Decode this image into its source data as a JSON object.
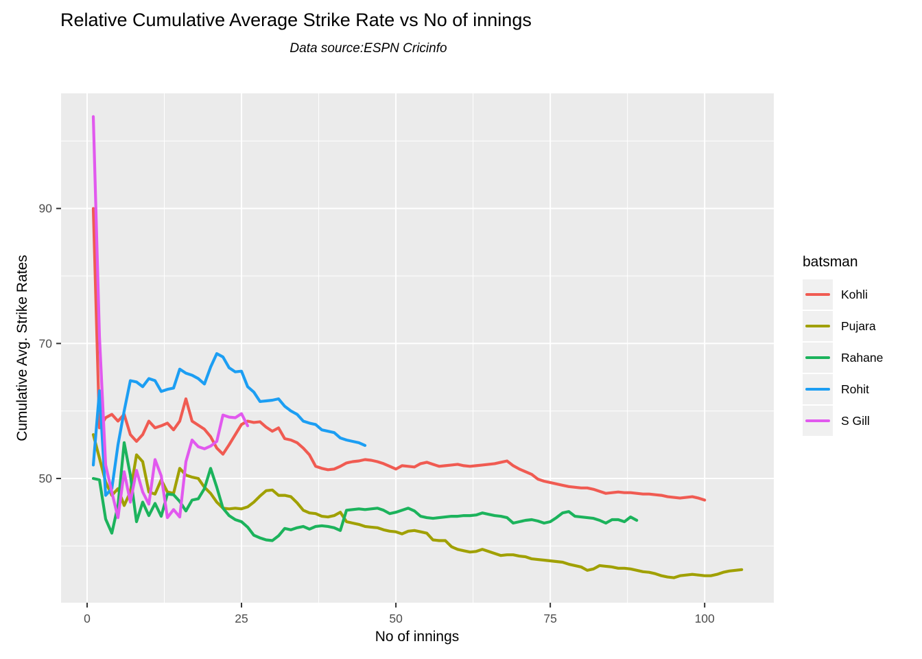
{
  "chart_data": {
    "type": "line",
    "title": "Relative Cumulative Average Strike Rate vs No of innings",
    "subtitle": "Data source:ESPN Cricinfo",
    "xlabel": "No of innings",
    "ylabel": "Cumulative Avg. Strike Rates",
    "legend_title": "batsman",
    "legend_position": "right",
    "grid": "on",
    "colors": {
      "figure_background": "#FFFFFF",
      "panel_background": "#EBEBEB",
      "gridline": "#FFFFFF",
      "legend_key_background": "#F0F0F0",
      "tick_label": "#4D4D4D",
      "tick_mark": "#333333"
    },
    "xlim": [
      -4.22,
      111.2
    ],
    "ylim": [
      31.6,
      107.05
    ],
    "x_ticks": [
      0,
      25,
      50,
      75,
      100
    ],
    "x_minor_ticks": [
      12.5,
      37.5,
      62.5,
      87.5
    ],
    "y_ticks": [
      50,
      70,
      90
    ],
    "y_minor_ticks": [
      40,
      60,
      80,
      100
    ],
    "x_start": 1,
    "series": [
      {
        "name": "Kohli",
        "color": "#F05B52",
        "values": [
          90,
          57.5,
          59,
          59.5,
          58.5,
          59.5,
          56.5,
          55.5,
          56.5,
          58.5,
          57.5,
          57.8,
          58.2,
          57.2,
          58.5,
          61.8,
          58.5,
          57.9,
          57.3,
          56.2,
          54.5,
          53.6,
          55,
          56.5,
          58,
          58.5,
          58.3,
          58.4,
          57.6,
          57,
          57.5,
          55.9,
          55.7,
          55.3,
          54.5,
          53.5,
          51.8,
          51.5,
          51.3,
          51.4,
          51.8,
          52.3,
          52.5,
          52.6,
          52.8,
          52.7,
          52.5,
          52.2,
          51.8,
          51.4,
          51.9,
          51.8,
          51.7,
          52.2,
          52.4,
          52.1,
          51.8,
          51.9,
          52,
          52.1,
          51.9,
          51.8,
          51.9,
          52,
          52.1,
          52.2,
          52.4,
          52.6,
          51.9,
          51.4,
          51,
          50.6,
          49.9,
          49.6,
          49.4,
          49.2,
          49,
          48.8,
          48.7,
          48.6,
          48.6,
          48.4,
          48.1,
          47.8,
          47.9,
          48,
          47.9,
          47.9,
          47.8,
          47.7,
          47.7,
          47.6,
          47.5,
          47.3,
          47.2,
          47.1,
          47.2,
          47.3,
          47.1,
          46.8
        ]
      },
      {
        "name": "Pujara",
        "color": "#A0A000",
        "values": [
          56.5,
          53,
          49.5,
          47.5,
          48.5,
          46,
          48,
          53.5,
          52.5,
          48,
          47.7,
          49.8,
          48,
          47.8,
          51.5,
          50.5,
          50.2,
          50,
          48.7,
          47.8,
          46.5,
          45.6,
          45.5,
          45.6,
          45.5,
          45.8,
          46.5,
          47.4,
          48.2,
          48.3,
          47.5,
          47.5,
          47.3,
          46.4,
          45.3,
          44.9,
          44.8,
          44.4,
          44.3,
          44.5,
          45,
          43.6,
          43.4,
          43.2,
          42.9,
          42.8,
          42.7,
          42.4,
          42.2,
          42.1,
          41.8,
          42.2,
          42.3,
          42.1,
          41.9,
          40.9,
          40.8,
          40.8,
          39.9,
          39.5,
          39.3,
          39.1,
          39.2,
          39.5,
          39.2,
          38.9,
          38.6,
          38.7,
          38.7,
          38.5,
          38.4,
          38.1,
          38,
          37.9,
          37.8,
          37.7,
          37.6,
          37.3,
          37.1,
          36.9,
          36.4,
          36.6,
          37.1,
          37,
          36.9,
          36.7,
          36.7,
          36.6,
          36.4,
          36.2,
          36.1,
          35.9,
          35.6,
          35.4,
          35.3,
          35.6,
          35.7,
          35.8,
          35.7,
          35.6,
          35.6,
          35.8,
          36.1,
          36.3,
          36.4,
          36.5
        ]
      },
      {
        "name": "Rahane",
        "color": "#1CB35C",
        "values": [
          50,
          49.8,
          44,
          41.9,
          46,
          55.3,
          50.5,
          43.6,
          46.5,
          44.5,
          46.3,
          44.4,
          47.7,
          47.6,
          46.6,
          45.2,
          46.8,
          47,
          48.5,
          51.5,
          48.7,
          45.6,
          44.5,
          43.9,
          43.6,
          42.8,
          41.6,
          41.2,
          40.9,
          40.8,
          41.5,
          42.6,
          42.4,
          42.7,
          42.9,
          42.5,
          42.9,
          43,
          42.9,
          42.7,
          42.3,
          45.3,
          45.4,
          45.5,
          45.4,
          45.5,
          45.6,
          45.3,
          44.8,
          45,
          45.3,
          45.6,
          45.2,
          44.4,
          44.2,
          44.1,
          44.2,
          44.3,
          44.4,
          44.4,
          44.5,
          44.5,
          44.6,
          44.9,
          44.7,
          44.5,
          44.4,
          44.2,
          43.4,
          43.6,
          43.8,
          43.9,
          43.7,
          43.4,
          43.6,
          44.2,
          44.9,
          45.1,
          44.4,
          44.3,
          44.2,
          44.1,
          43.8,
          43.4,
          43.9,
          43.9,
          43.6,
          44.3,
          43.8
        ]
      },
      {
        "name": "Rohit",
        "color": "#1C9EF3",
        "values": [
          52,
          63,
          47.5,
          48.5,
          55,
          60,
          64.5,
          64.3,
          63.6,
          64.8,
          64.5,
          62.9,
          63.2,
          63.4,
          66.2,
          65.6,
          65.3,
          64.8,
          64,
          66.5,
          68.5,
          68,
          66.4,
          65.8,
          65.9,
          63.6,
          62.8,
          61.4,
          61.5,
          61.6,
          61.8,
          60.7,
          60,
          59.5,
          58.5,
          58.2,
          58,
          57.2,
          57,
          56.8,
          56,
          55.7,
          55.5,
          55.3,
          54.9
        ]
      },
      {
        "name": "S Gill",
        "color": "#E159EE",
        "values": [
          103.6,
          71,
          52,
          48,
          44.2,
          51,
          46.5,
          51.2,
          48,
          46.2,
          52.8,
          50.4,
          44.2,
          45.4,
          44.3,
          52.5,
          55.7,
          54.7,
          54.4,
          54.8,
          55.5,
          59.4,
          59.1,
          59,
          59.6,
          57.8
        ]
      }
    ]
  }
}
